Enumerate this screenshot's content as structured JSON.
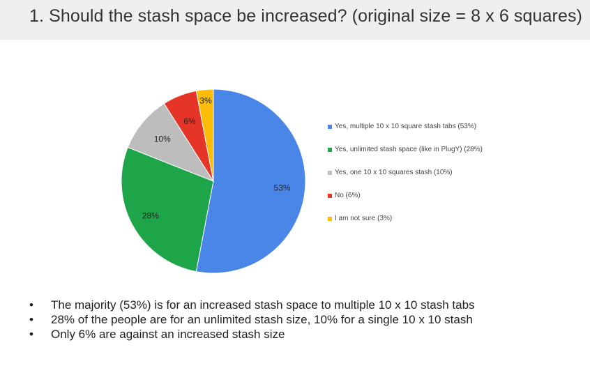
{
  "slide": {
    "title": "1. Should the stash space be increased? (original size = 8 x 6 squares)",
    "bullets": [
      "The majority (53%) is for an increased stash space to multiple 10 x 10 stash tabs",
      "28% of the people are for an unlimited stash size, 10% for a single 10 x 10 stash",
      "Only 6% are against an increased stash size"
    ],
    "bullet_marker": "•"
  },
  "chart_data": {
    "type": "pie",
    "legend_position": "right",
    "slices": [
      {
        "label": "Yes, multiple 10 x 10 square stash tabs (53%)",
        "value": 53,
        "value_label": "53%",
        "color": "#4a86e8"
      },
      {
        "label": "Yes, unlimited stash space (like in PlugY) (28%)",
        "value": 28,
        "value_label": "28%",
        "color": "#1ea549"
      },
      {
        "label": "Yes, one 10 x 10 squares stash (10%)",
        "value": 10,
        "value_label": "10%",
        "color": "#bdbdbd"
      },
      {
        "label": "No (6%)",
        "value": 6,
        "value_label": "6%",
        "color": "#e53528"
      },
      {
        "label": "I am not sure (3%)",
        "value": 3,
        "value_label": "3%",
        "color": "#fbbd07"
      }
    ]
  }
}
